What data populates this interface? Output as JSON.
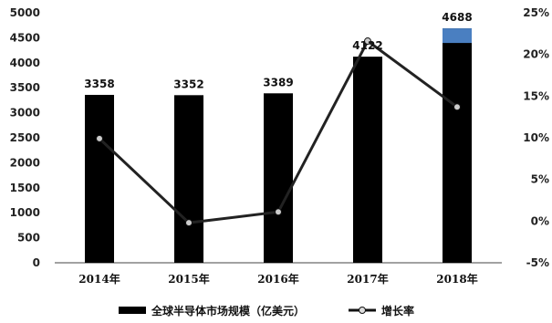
{
  "chart_data": {
    "type": "bar",
    "categories": [
      "2014年",
      "2015年",
      "2016年",
      "2017年",
      "2018年"
    ],
    "series": [
      {
        "name": "全球半导体市场规模（亿美元）",
        "type": "bar",
        "axis": "left",
        "values": [
          3358,
          3352,
          3389,
          4122,
          4688
        ]
      },
      {
        "name": "增长率",
        "type": "line",
        "axis": "right",
        "values": [
          9.9,
          -0.2,
          1.1,
          21.6,
          13.7
        ]
      }
    ],
    "bar_labels": [
      "3358",
      "3352",
      "3389",
      "4122",
      "4688"
    ],
    "y_left": {
      "min": 0,
      "max": 5000,
      "step": 500,
      "ticks": [
        "0",
        "500",
        "1000",
        "1500",
        "2000",
        "2500",
        "3000",
        "3500",
        "4000",
        "4500",
        "5000"
      ]
    },
    "y_right": {
      "min": -5,
      "max": 25,
      "step": 5,
      "ticks": [
        "-5%",
        "0%",
        "5%",
        "10%",
        "15%",
        "20%",
        "25%"
      ]
    },
    "colors": {
      "bar": "#000000",
      "bar_top_2018": "#4a7fc1",
      "line": "#222222"
    },
    "legend": {
      "position": "bottom",
      "bar_label": "全球半导体市场规模（亿美元）",
      "line_label": "增长率"
    }
  }
}
